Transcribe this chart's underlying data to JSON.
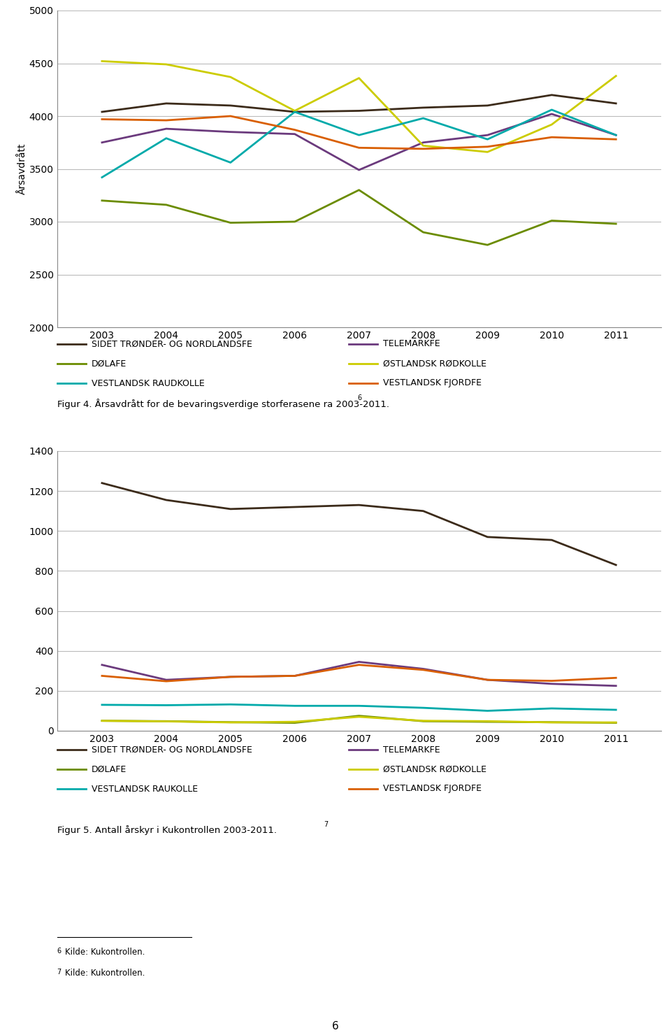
{
  "years": [
    2003,
    2004,
    2005,
    2006,
    2007,
    2008,
    2009,
    2010,
    2011
  ],
  "chart1": {
    "ylabel": "Årsavdrått",
    "ylim": [
      2000,
      5000
    ],
    "yticks": [
      2000,
      2500,
      3000,
      3500,
      4000,
      4500,
      5000
    ],
    "series": {
      "SIDET TRØNDER- OG NORDLANDSFE": {
        "color": "#3C2B1A",
        "values": [
          4040,
          4120,
          4100,
          4040,
          4050,
          4080,
          4100,
          4200,
          4120
        ]
      },
      "TELEMARKFE": {
        "color": "#6B3A7D",
        "values": [
          3750,
          3880,
          3850,
          3830,
          3490,
          3750,
          3820,
          4020,
          3820
        ]
      },
      "DØLAFE": {
        "color": "#6B8C00",
        "values": [
          3200,
          3160,
          2990,
          3000,
          3300,
          2900,
          2780,
          3010,
          2980
        ]
      },
      "ØSTLANDSK RØDKOLLE": {
        "color": "#CCCC00",
        "values": [
          4520,
          4490,
          4370,
          4050,
          4360,
          3720,
          3660,
          3920,
          4380
        ]
      },
      "VESTLANDSK RAUKOLLE": {
        "color": "#00AAAA",
        "values": [
          3420,
          3790,
          3560,
          4040,
          3820,
          3980,
          3780,
          4060,
          3820
        ]
      },
      "VESTLANDSK FJORDFE": {
        "color": "#D95F02",
        "values": [
          3970,
          3960,
          4000,
          3870,
          3700,
          3690,
          3710,
          3800,
          3780
        ]
      }
    }
  },
  "chart2": {
    "ylabel": "",
    "ylim": [
      0,
      1400
    ],
    "yticks": [
      0,
      200,
      400,
      600,
      800,
      1000,
      1200,
      1400
    ],
    "series": {
      "SIDET TRØNDER- OG NORDLANDSFE": {
        "color": "#3C2B1A",
        "values": [
          1240,
          1155,
          1110,
          1120,
          1130,
          1100,
          970,
          955,
          830
        ]
      },
      "TELEMARKFE": {
        "color": "#6B3A7D",
        "values": [
          330,
          255,
          270,
          275,
          345,
          310,
          255,
          235,
          225
        ]
      },
      "DØLAFE": {
        "color": "#6B8C00",
        "values": [
          50,
          48,
          43,
          40,
          75,
          48,
          45,
          43,
          40
        ]
      },
      "ØSTLANDSK RØDKOLLE": {
        "color": "#CCCC00",
        "values": [
          50,
          47,
          42,
          45,
          70,
          50,
          48,
          42,
          42
        ]
      },
      "VESTLANDSK RAUKOLLE": {
        "color": "#00AAAA",
        "values": [
          130,
          128,
          132,
          125,
          125,
          115,
          100,
          112,
          105
        ]
      },
      "VESTLANDSK FJORDFE": {
        "color": "#D95F02",
        "values": [
          275,
          248,
          270,
          275,
          330,
          305,
          255,
          250,
          265
        ]
      }
    }
  },
  "legend1_rows": [
    [
      "SIDET TRØNDER- OG NORDLANDSFE",
      "#3C2B1A",
      "TELEMARKFE",
      "#6B3A7D"
    ],
    [
      "DØLAFE",
      "#6B8C00",
      "ØSTLANDSK RØDKOLLE",
      "#CCCC00"
    ],
    [
      "VESTLANDSK RAUDKOLLE",
      "#00AAAA",
      "VESTLANDSK FJORDFE",
      "#D95F02"
    ]
  ],
  "legend2_rows": [
    [
      "SIDET TRØNDER- OG NORDLANDSFE",
      "#3C2B1A",
      "TELEMARKFE",
      "#6B3A7D"
    ],
    [
      "DØLAFE",
      "#6B8C00",
      "ØSTLANDSK RØDKOLLE",
      "#CCCC00"
    ],
    [
      "VESTLANDSK RAUKOLLE",
      "#00AAAA",
      "VESTLANDSK FJORDFE",
      "#D95F02"
    ]
  ],
  "fig4_caption": "Figur 4. Årsavdrått for de bevaringsverdige storferasene ra 2003-2011.",
  "fig4_superscript": "6",
  "fig5_caption": "Figur 5. Antall årskyr i Kukontrollen 2003-2011.",
  "fig5_superscript": "7",
  "footnote6": "Kilde: Kukontrollen.",
  "footnote7": "Kilde: Kukontrollen.",
  "footnote6_super": "6",
  "footnote7_super": "7",
  "page_number": "6",
  "background_color": "#FFFFFF",
  "grid_color": "#BBBBBB",
  "axis_color": "#888888",
  "tick_fontsize": 10,
  "label_fontsize": 10,
  "legend_fontsize": 9,
  "caption_fontsize": 9.5,
  "footnote_fontsize": 8.5
}
